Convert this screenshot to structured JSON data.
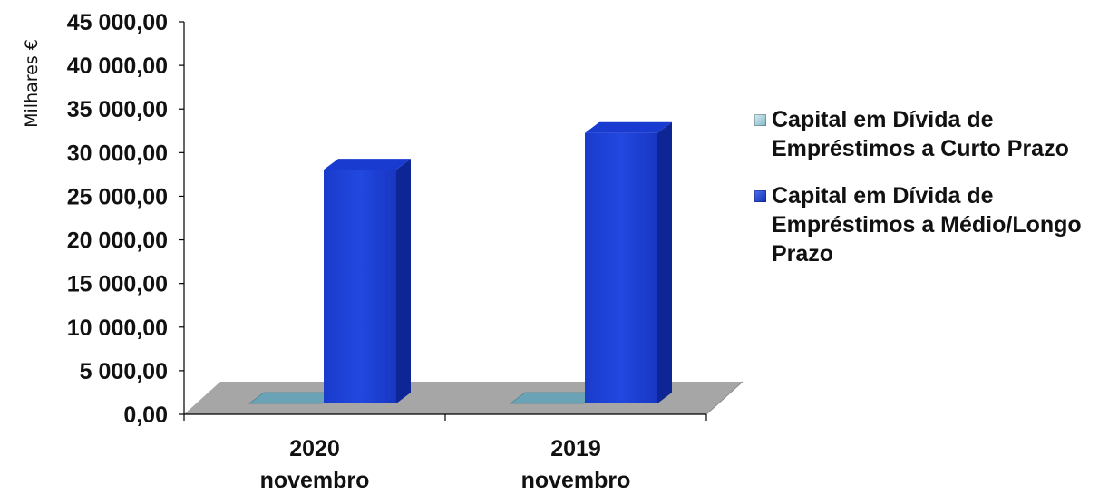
{
  "chart_data": {
    "type": "bar",
    "three_d": true,
    "categories": [
      [
        "2020",
        "novembro"
      ],
      [
        "2019",
        "novembro"
      ]
    ],
    "series": [
      {
        "name": "Capital em Dívida de Empréstimos a Curto Prazo",
        "values": [
          0,
          0
        ],
        "color": "#5b9bb0"
      },
      {
        "name": "Capital em Dívida de Empréstimos a Médio/Longo Prazo",
        "values": [
          26800,
          31000
        ],
        "color": "#1f3fd0"
      }
    ],
    "ylabel": "Milhares €",
    "xlabel": "",
    "title": "",
    "ylim": [
      0,
      45000
    ],
    "yticks": [
      "0,00",
      "5 000,00",
      "10 000,00",
      "15 000,00",
      "20 000,00",
      "25 000,00",
      "30 000,00",
      "35 000,00",
      "40 000,00",
      "45 000,00"
    ],
    "legend_position": "right",
    "grid": false,
    "floor_color": "#a6a6a6"
  }
}
